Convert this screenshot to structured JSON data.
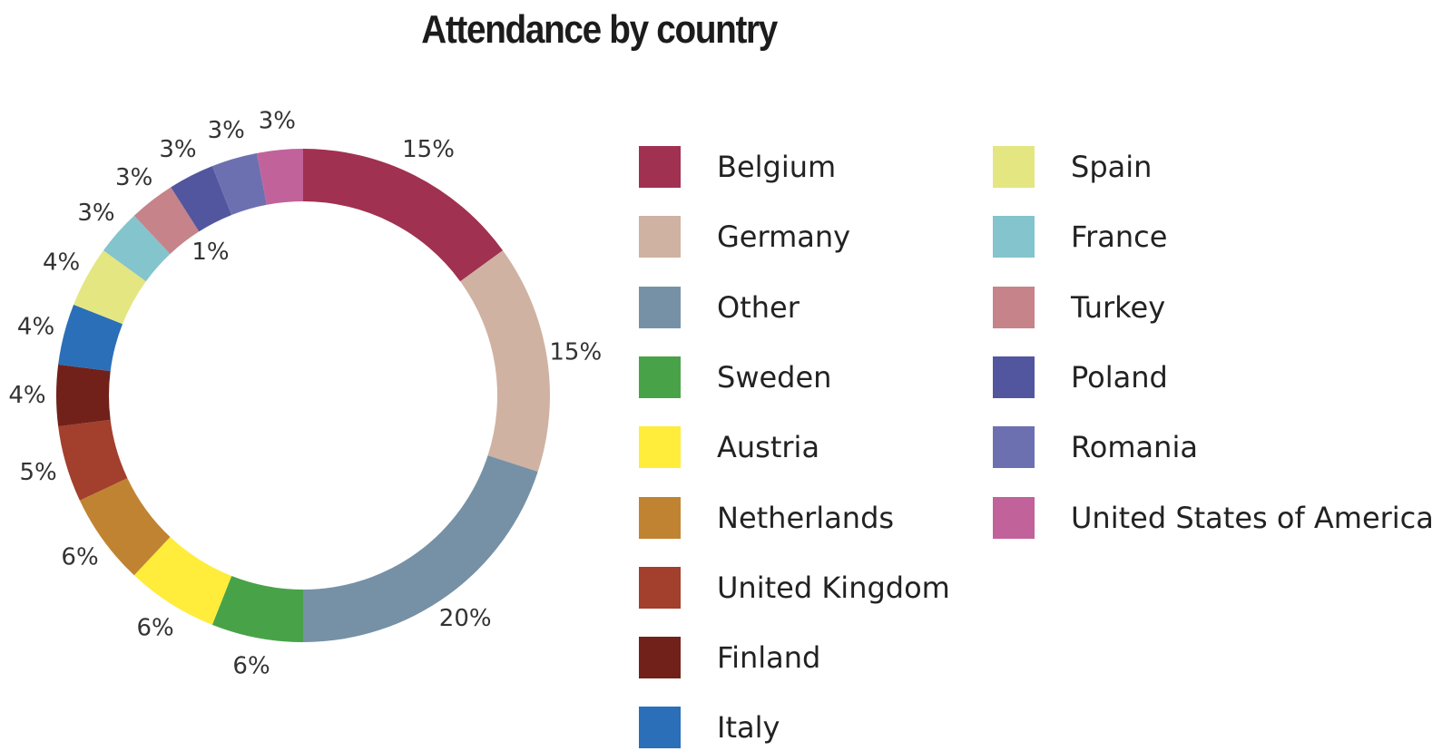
{
  "chart_data": {
    "type": "pie",
    "title": "Attendance by country",
    "slices": [
      {
        "name": "Belgium",
        "value": 15,
        "label": "15%",
        "color": "#a13150"
      },
      {
        "name": "Germany",
        "value": 15,
        "label": "15%",
        "color": "#cfb2a2"
      },
      {
        "name": "Other",
        "value": 20,
        "label": "20%",
        "color": "#7691a6"
      },
      {
        "name": "Sweden",
        "value": 6,
        "label": "6%",
        "color": "#48a348"
      },
      {
        "name": "Austria",
        "value": 6,
        "label": "6%",
        "color": "#ffec3b"
      },
      {
        "name": "Netherlands",
        "value": 6,
        "label": "6%",
        "color": "#c08331"
      },
      {
        "name": "United Kingdom",
        "value": 5,
        "label": "5%",
        "color": "#a33f2d"
      },
      {
        "name": "Finland",
        "value": 4,
        "label": "4%",
        "color": "#71211a"
      },
      {
        "name": "Italy",
        "value": 4,
        "label": "4%",
        "color": "#2a6fb7"
      },
      {
        "name": "Spain",
        "value": 4,
        "label": "4%",
        "color": "#e4e681"
      },
      {
        "name": "France",
        "value": 3,
        "label": "3%",
        "color": "#84c4cd"
      },
      {
        "name": "Turkey",
        "value": 3,
        "label": "3%",
        "color": "#c6838a"
      },
      {
        "name": "Poland",
        "value": 3,
        "label": "3%",
        "color": "#52569f"
      },
      {
        "name": "Romania",
        "value": 3,
        "label": "3%",
        "color": "#6d70b0"
      },
      {
        "name": "United States of America",
        "value": 3,
        "label": "3%",
        "color": "#c1629b"
      }
    ],
    "extra_labels": [
      "1%"
    ],
    "legend_position": "right"
  }
}
